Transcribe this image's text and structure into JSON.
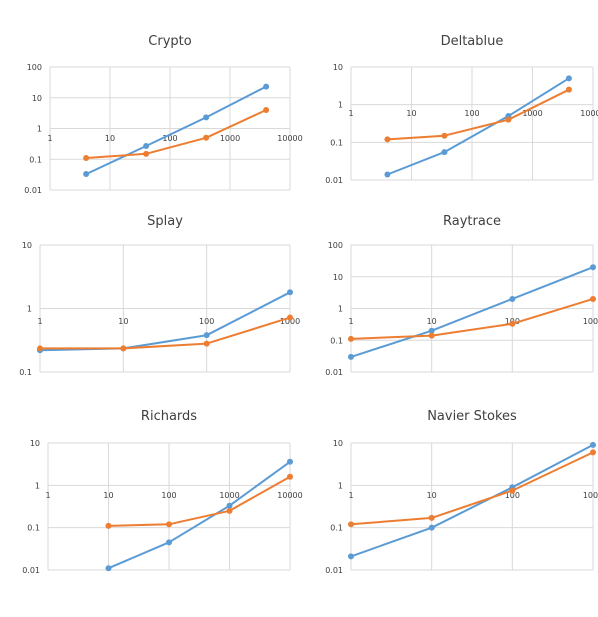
{
  "colors": {
    "series_a": "#5b9bd5",
    "series_b": "#ed7d31",
    "grid": "#d9d9d9",
    "text": "#404040"
  },
  "chart_data": [
    {
      "type": "line",
      "title": "Crypto",
      "xscale": "log",
      "yscale": "log",
      "grid": true,
      "legend": "none",
      "xlim": [
        1,
        10000
      ],
      "ylim": [
        0.01,
        100
      ],
      "xticks": [
        "1",
        "10",
        "100",
        "1000",
        "10000"
      ],
      "yticks": [
        "0.01",
        "0.1",
        "1",
        "10",
        "100"
      ],
      "series": [
        {
          "points": [
            [
              4,
              0.033
            ],
            [
              40,
              0.27
            ],
            [
              400,
              2.3
            ],
            [
              4000,
              23
            ]
          ]
        },
        {
          "points": [
            [
              4,
              0.11
            ],
            [
              40,
              0.15
            ],
            [
              400,
              0.5
            ],
            [
              4000,
              4
            ]
          ]
        }
      ]
    },
    {
      "type": "line",
      "title": "Deltablue",
      "xscale": "log",
      "yscale": "log",
      "grid": true,
      "legend": "none",
      "xlim": [
        1,
        10000
      ],
      "ylim": [
        0.01,
        10
      ],
      "xticks": [
        "1",
        "10",
        "100",
        "1000",
        "10000"
      ],
      "yticks": [
        "0.01",
        "0.1",
        "1",
        "10"
      ],
      "series": [
        {
          "points": [
            [
              4,
              0.014
            ],
            [
              35,
              0.055
            ],
            [
              400,
              0.5
            ],
            [
              4000,
              5
            ]
          ]
        },
        {
          "points": [
            [
              4,
              0.12
            ],
            [
              35,
              0.15
            ],
            [
              400,
              0.4
            ],
            [
              4000,
              2.5
            ]
          ]
        }
      ]
    },
    {
      "type": "line",
      "title": "Splay",
      "xscale": "log",
      "yscale": "log",
      "grid": true,
      "legend": "none",
      "xlim": [
        1,
        1000
      ],
      "ylim": [
        0.1,
        10
      ],
      "xticks": [
        "1",
        "10",
        "100",
        "1000"
      ],
      "yticks": [
        "0.1",
        "1",
        "10"
      ],
      "series": [
        {
          "points": [
            [
              1,
              0.22
            ],
            [
              10,
              0.235
            ],
            [
              100,
              0.38
            ],
            [
              1000,
              1.8
            ]
          ]
        },
        {
          "points": [
            [
              1,
              0.235
            ],
            [
              10,
              0.235
            ],
            [
              100,
              0.28
            ],
            [
              1000,
              0.72
            ]
          ]
        }
      ]
    },
    {
      "type": "line",
      "title": "Raytrace",
      "xscale": "log",
      "yscale": "log",
      "grid": true,
      "legend": "none",
      "xlim": [
        1,
        1000
      ],
      "ylim": [
        0.01,
        100
      ],
      "xticks": [
        "1",
        "10",
        "100",
        "1000"
      ],
      "yticks": [
        "0.01",
        "0.1",
        "1",
        "10",
        "100"
      ],
      "series": [
        {
          "points": [
            [
              1,
              0.03
            ],
            [
              10,
              0.2
            ],
            [
              100,
              2
            ],
            [
              1000,
              20
            ]
          ]
        },
        {
          "points": [
            [
              1,
              0.11
            ],
            [
              10,
              0.14
            ],
            [
              100,
              0.33
            ],
            [
              1000,
              2
            ]
          ]
        }
      ]
    },
    {
      "type": "line",
      "title": "Richards",
      "xscale": "log",
      "yscale": "log",
      "grid": true,
      "legend": "none",
      "xlim": [
        1,
        10000
      ],
      "ylim": [
        0.01,
        10
      ],
      "xticks": [
        "1",
        "10",
        "100",
        "1000",
        "10000"
      ],
      "yticks": [
        "0.01",
        "0.1",
        "1",
        "10"
      ],
      "series": [
        {
          "points": [
            [
              10,
              0.011
            ],
            [
              100,
              0.045
            ],
            [
              1000,
              0.33
            ],
            [
              10000,
              3.6
            ]
          ]
        },
        {
          "points": [
            [
              10,
              0.11
            ],
            [
              100,
              0.12
            ],
            [
              1000,
              0.25
            ],
            [
              10000,
              1.6
            ]
          ]
        }
      ]
    },
    {
      "type": "line",
      "title": "Navier Stokes",
      "xscale": "log",
      "yscale": "log",
      "grid": true,
      "legend": "none",
      "xlim": [
        1,
        1000
      ],
      "ylim": [
        0.01,
        10
      ],
      "xticks": [
        "1",
        "10",
        "100",
        "1000"
      ],
      "yticks": [
        "0.01",
        "0.1",
        "1",
        "10"
      ],
      "series": [
        {
          "points": [
            [
              1,
              0.021
            ],
            [
              10,
              0.1
            ],
            [
              100,
              0.9
            ],
            [
              1000,
              9
            ]
          ]
        },
        {
          "points": [
            [
              1,
              0.12
            ],
            [
              10,
              0.17
            ],
            [
              100,
              0.75
            ],
            [
              1000,
              6
            ]
          ]
        }
      ]
    }
  ]
}
